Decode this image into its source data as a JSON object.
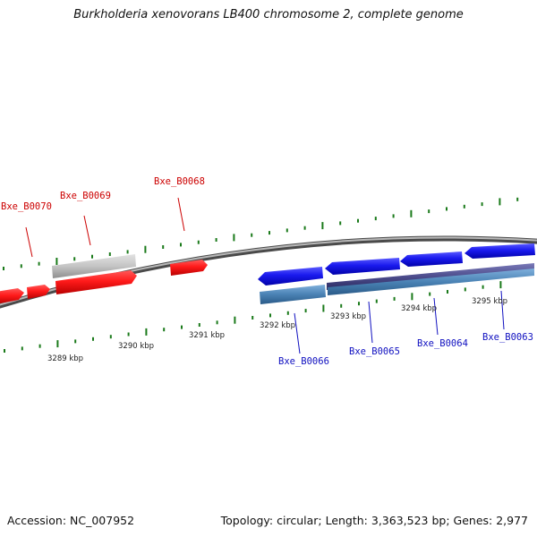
{
  "title": "Burkholderia xenovorans LB400 chromosome 2, complete genome",
  "footer": {
    "accession": "Accession: NC_007952",
    "summary": "Topology: circular; Length: 3,363,523 bp; Genes: 2,977"
  },
  "colors": {
    "forward_gene": "#ff1a1a",
    "forward_gene_dark": "#cc0000",
    "reverse_gene": "#1a1aee",
    "reverse_gene_dark": "#0000b0",
    "feature_gray": "#c0c0c0",
    "feature_slate": "#4c4c8c",
    "feature_steel": "#4a82b4",
    "backbone": "#8a8a8a",
    "tick": "#1a7a1a",
    "forward_label": "#cc0000",
    "reverse_label": "#1010c0",
    "scale_label": "#222222"
  },
  "scale": {
    "unit": "kbp",
    "labels": [
      {
        "kbp": 3289,
        "text": "3289 kbp"
      },
      {
        "kbp": 3290,
        "text": "3290 kbp"
      },
      {
        "kbp": 3291,
        "text": "3291 kbp"
      },
      {
        "kbp": 3292,
        "text": "3292 kbp"
      },
      {
        "kbp": 3293,
        "text": "3293 kbp"
      },
      {
        "kbp": 3294,
        "text": "3294 kbp"
      },
      {
        "kbp": 3295,
        "text": "3295 kbp"
      }
    ]
  },
  "gene_labels": [
    {
      "text": "Bxe_B0070",
      "strand": "forward"
    },
    {
      "text": "Bxe_B0069",
      "strand": "forward"
    },
    {
      "text": "Bxe_B0068",
      "strand": "forward"
    },
    {
      "text": "Bxe_B0066",
      "strand": "reverse"
    },
    {
      "text": "Bxe_B0065",
      "strand": "reverse"
    },
    {
      "text": "Bxe_B0064",
      "strand": "reverse"
    },
    {
      "text": "Bxe_B0063",
      "strand": "reverse"
    }
  ]
}
